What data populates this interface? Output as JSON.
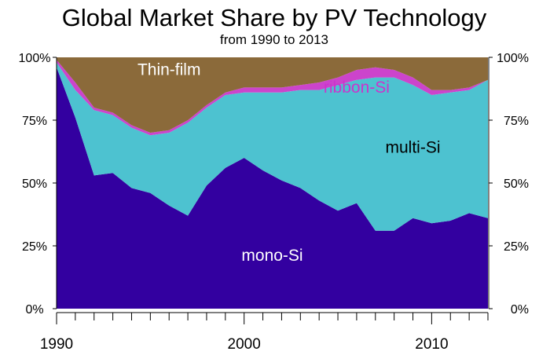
{
  "chart_data": {
    "type": "area",
    "stacked": true,
    "normalized": true,
    "title": "Global Market Share by PV Technology",
    "subtitle": "from 1990 to 2013",
    "xlabel": "",
    "ylabel": "",
    "xlim": [
      1990,
      2013
    ],
    "ylim": [
      0,
      100
    ],
    "x_tick_labels": [
      "1990",
      "2000",
      "2010"
    ],
    "y_tick_labels": [
      "0%",
      "25%",
      "50%",
      "75%",
      "100%"
    ],
    "grid": false,
    "legend": "labels inside areas",
    "x": [
      1990,
      1991,
      1992,
      1993,
      1994,
      1995,
      1996,
      1997,
      1998,
      1999,
      2000,
      2001,
      2002,
      2003,
      2004,
      2005,
      2006,
      2007,
      2008,
      2009,
      2010,
      2011,
      2012,
      2013
    ],
    "series": [
      {
        "name": "mono-Si",
        "color": "#3300a0",
        "values": [
          96,
          76,
          53,
          54,
          48,
          46,
          41,
          37,
          49,
          56,
          60,
          55,
          51,
          48,
          43,
          39,
          42,
          31,
          31,
          36,
          34,
          35,
          38,
          36
        ]
      },
      {
        "name": "multi-Si",
        "color": "#4dc2d0",
        "values": [
          2,
          11,
          26,
          23,
          24,
          23,
          29,
          37,
          31,
          29,
          26,
          31,
          35,
          39,
          44,
          50,
          49,
          61,
          61,
          53,
          51,
          51,
          49,
          55
        ]
      },
      {
        "name": "ribbon-Si",
        "color": "#cc44cc",
        "values": [
          1,
          3,
          1,
          1,
          1,
          1,
          1,
          1,
          1,
          1,
          2,
          2,
          2,
          2,
          3,
          3,
          4,
          4,
          3,
          3,
          2,
          1,
          1,
          0
        ]
      },
      {
        "name": "Thin-film",
        "color": "#8b6a3a",
        "values": [
          1,
          10,
          20,
          22,
          27,
          30,
          29,
          25,
          19,
          14,
          12,
          12,
          12,
          11,
          10,
          8,
          5,
          4,
          5,
          8,
          13,
          13,
          12,
          9
        ]
      }
    ]
  }
}
